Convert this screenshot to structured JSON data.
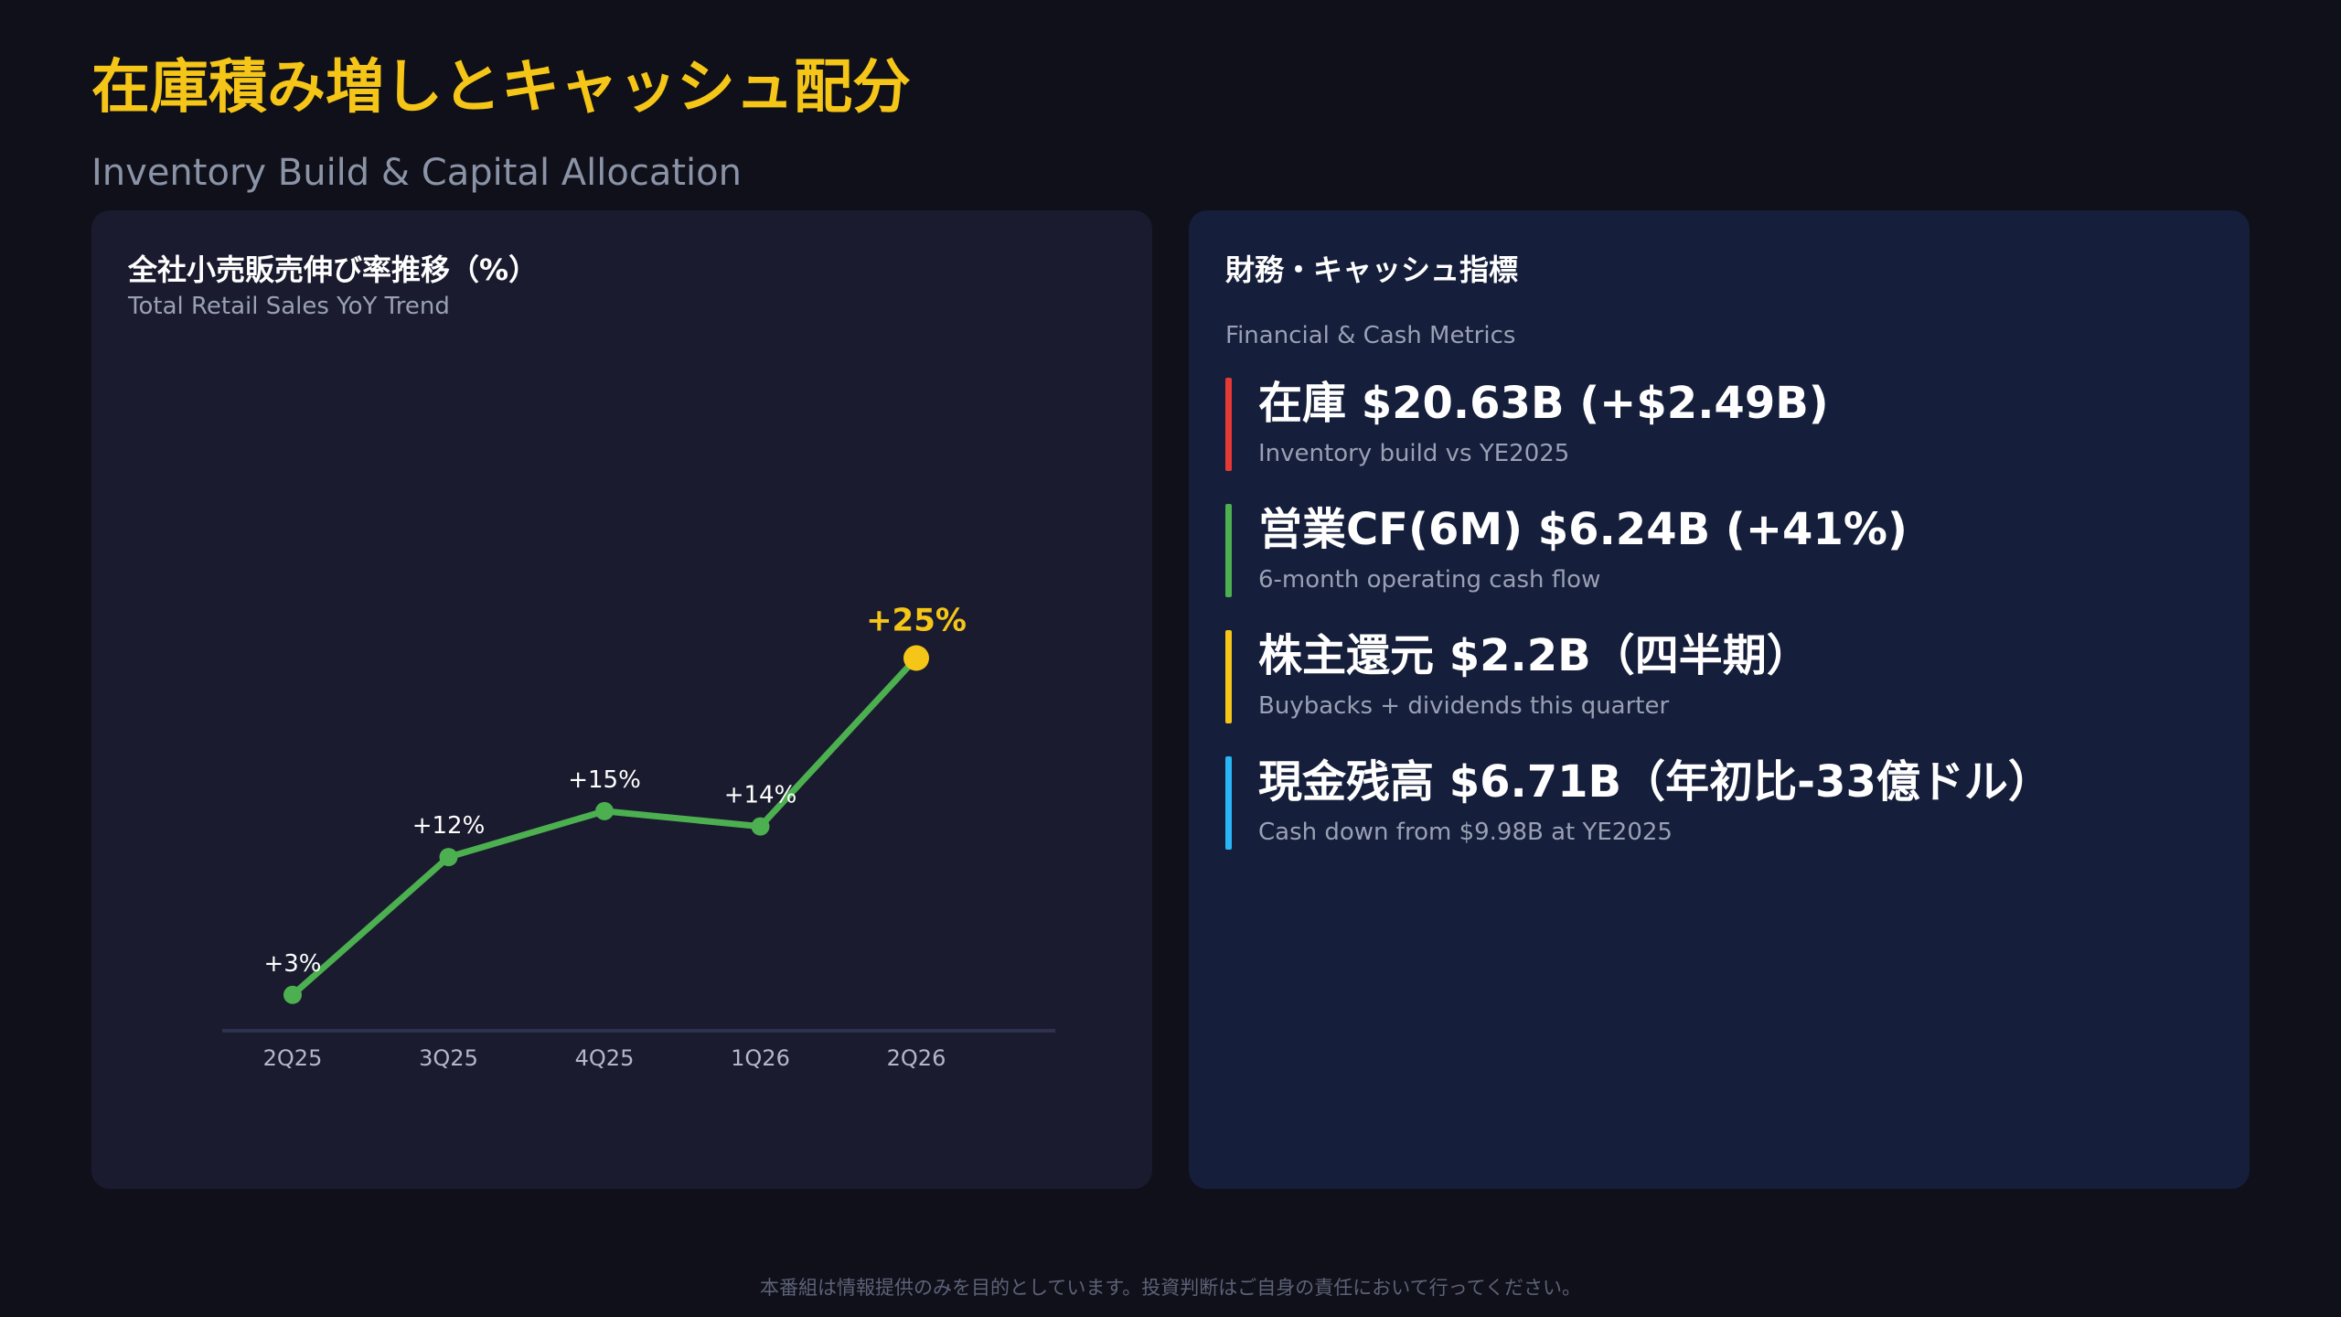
{
  "header": {
    "title": "在庫積み増しとキャッシュ配分",
    "subtitle": "Inventory Build & Capital Allocation"
  },
  "left_panel": {
    "title": "全社小売販売伸び率推移（%）",
    "subtitle": "Total Retail Sales YoY Trend"
  },
  "right_panel": {
    "title": "財務・キャッシュ指標",
    "subtitle": "Financial & Cash Metrics",
    "metrics": [
      {
        "value": "在庫 $20.63B (+$2.49B)",
        "desc": "Inventory build vs YE2025",
        "color": "#e53935"
      },
      {
        "value": "営業CF(6M) $6.24B (+41%)",
        "desc": "6-month operating cash flow",
        "color": "#4caf50"
      },
      {
        "value": "株主還元 $2.2B（四半期）",
        "desc": "Buybacks + dividends this quarter",
        "color": "#f5c518"
      },
      {
        "value": "現金残高 $6.71B（年初比-33億ドル）",
        "desc": "Cash down from $9.98B at YE2025",
        "color": "#29b6f6"
      }
    ]
  },
  "chart_data": {
    "type": "line",
    "title": "全社小売販売伸び率推移（%）",
    "subtitle": "Total Retail Sales YoY Trend",
    "categories": [
      "2Q25",
      "3Q25",
      "4Q25",
      "1Q26",
      "2Q26"
    ],
    "values": [
      3,
      12,
      15,
      14,
      25
    ],
    "data_labels": [
      "+3%",
      "+12%",
      "+15%",
      "+14%",
      "+25%"
    ],
    "ylim": [
      0,
      50
    ],
    "grid": false,
    "line_color": "#4caf50",
    "highlight_color": "#f5c518",
    "highlight_index": 4,
    "axis_color": "#2e3150",
    "label_color": "#ffffff",
    "tick_color": "#b3b8c8"
  },
  "footer": {
    "disclaimer": "本番組は情報提供のみを目的としています。投資判断はご自身の責任において行ってください。"
  }
}
